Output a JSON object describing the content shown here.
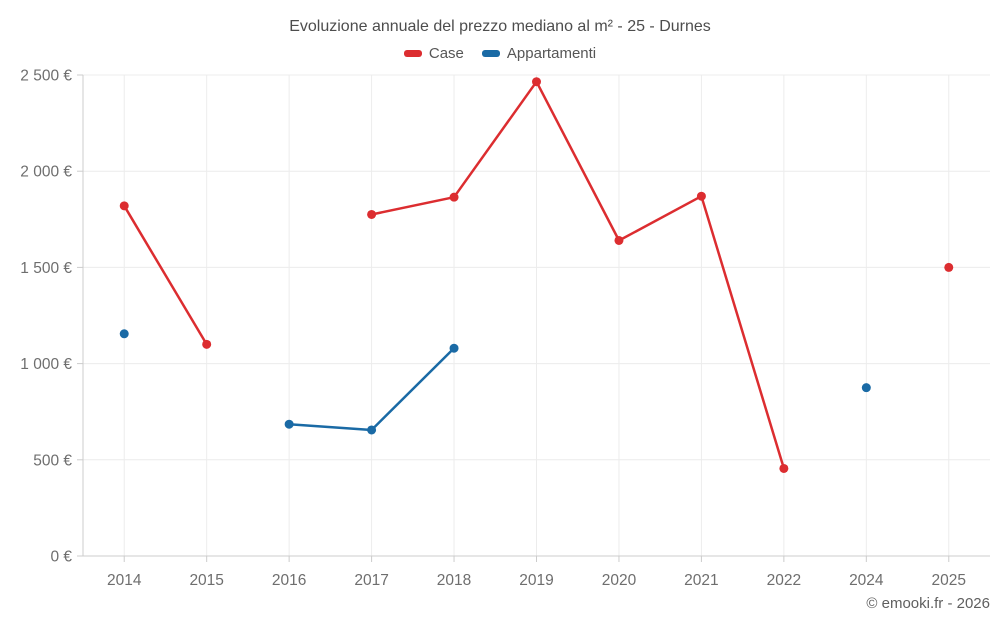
{
  "chart_data": {
    "type": "line",
    "title": "Evoluzione annuale del prezzo mediano al m² - 25 - Durnes",
    "categories": [
      "2014",
      "2015",
      "2016",
      "2017",
      "2018",
      "2019",
      "2020",
      "2021",
      "2022",
      "2024",
      "2025"
    ],
    "series": [
      {
        "name": "Case",
        "color": "#dc2d30",
        "values": [
          1820,
          1100,
          null,
          1775,
          1865,
          2465,
          1640,
          1870,
          455,
          null,
          1500
        ]
      },
      {
        "name": "Appartamenti",
        "color": "#1a6aa5",
        "values": [
          1155,
          null,
          685,
          655,
          1080,
          null,
          null,
          null,
          null,
          875,
          null
        ]
      }
    ],
    "xlabel": "",
    "ylabel": "",
    "ylim": [
      0,
      2500
    ],
    "yticks": [
      0,
      500,
      1000,
      1500,
      2000,
      2500
    ],
    "ytick_labels": [
      "0 €",
      "500 €",
      "1 000 €",
      "1 500 €",
      "2 000 €",
      "2 500 €"
    ],
    "grid": true,
    "legend_position": "top"
  },
  "footer": {
    "copyright": "© emooki.fr - 2026"
  },
  "colors": {
    "background": "#ffffff",
    "grid": "#ececec",
    "axis": "#cccccc",
    "title_text": "#4d4d4d",
    "axis_text": "#6e6e6e",
    "legend_text": "#565656",
    "copyright_text": "#5f5f5f"
  }
}
